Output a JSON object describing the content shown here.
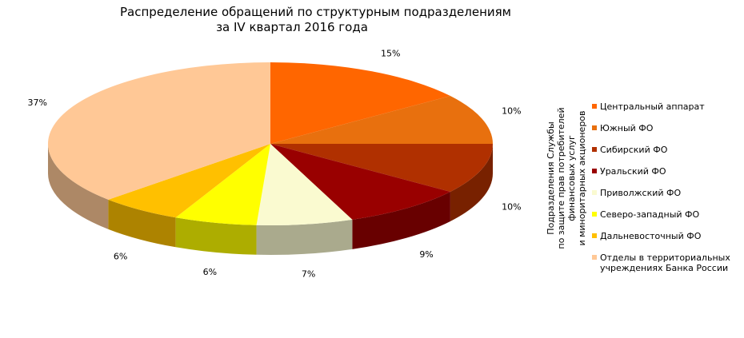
{
  "chart_data": {
    "type": "pie",
    "title": "Распределение обращений по структурным подразделениям",
    "subtitle": "за IV квартал 2016 года",
    "side_note": [
      "Подразделения Службы",
      "по защите прав потребителей финансовых  услуг",
      "и миноритарных акционеров"
    ],
    "legend_position": "right",
    "slices": [
      {
        "label": "Центральный аппарат",
        "value": 15,
        "text": "15%",
        "color": "#FF6600"
      },
      {
        "label": "Южный ФО",
        "value": 10,
        "text": "10%",
        "color": "#E8700E"
      },
      {
        "label": "Сибирский ФО",
        "value": 10,
        "text": "10%",
        "color": "#B03000"
      },
      {
        "label": "Уральский ФО",
        "value": 9,
        "text": "9%",
        "color": "#990000"
      },
      {
        "label": "Приволжский ФО",
        "value": 7,
        "text": "7%",
        "color": "#FAFAD0"
      },
      {
        "label": "Северо-западный ФО",
        "value": 6,
        "text": "6%",
        "color": "#FFFF00"
      },
      {
        "label": "Дальневосточный ФО",
        "value": 6,
        "text": "6%",
        "color": "#FFC000"
      },
      {
        "label": "Отделы в территориальных учреждениях Банка России",
        "value": 37,
        "text": "37%",
        "color": "#FFC896"
      }
    ]
  }
}
